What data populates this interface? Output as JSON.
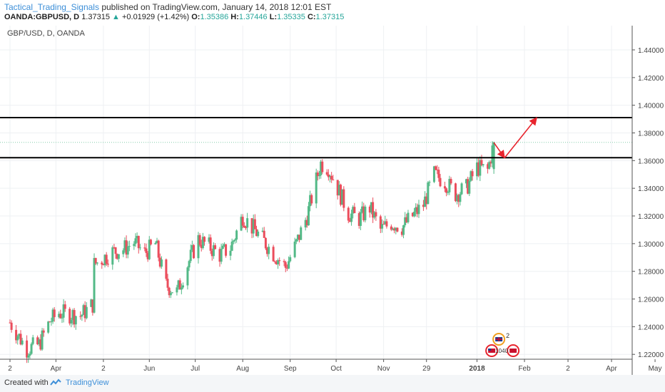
{
  "header": {
    "author": "Tactical_Trading_Signals",
    "published": "published on TradingView.com, January 14, 2018 12:01 EST",
    "symbol": "OANDA:GBPUSD, D",
    "last": "1.37315",
    "change_arrow": "▲",
    "change": "+0.01929 (+1.42%)",
    "o_label": "O:",
    "o": "1.35386",
    "h_label": "H:",
    "h": "1.37446",
    "l_label": "L:",
    "l": "1.35335",
    "c_label": "C:",
    "c": "1.37315"
  },
  "chart_title": "GBP/USD, D, OANDA",
  "colors": {
    "up": "#53b987",
    "down": "#eb4d5c",
    "level_line": "#000000",
    "arrow": "#e8242d",
    "current_badge": "#53b987",
    "grid": "#eef0f3"
  },
  "chart_data": {
    "type": "candlestick",
    "title": "GBP/USD, D, OANDA",
    "ylim": [
      1.2165,
      1.4575
    ],
    "y_ticks": [
      "1.44000",
      "1.42000",
      "1.40000",
      "1.38000",
      "1.36000",
      "1.34000",
      "1.32000",
      "1.30000",
      "1.28000",
      "1.26000",
      "1.24000",
      "1.22000"
    ],
    "x_ticks": [
      "2",
      "Apr",
      "2",
      "Jun",
      "Jul",
      "Aug",
      "Sep",
      "Oct",
      "Nov",
      "29",
      "2018",
      "Feb",
      "2",
      "Apr",
      "May"
    ],
    "key_levels": [
      {
        "label": "1.39105",
        "value": 1.39105
      },
      {
        "label": "1.36209",
        "value": 1.36209
      }
    ],
    "current_price": {
      "label": "1.37315",
      "value": 1.37315
    },
    "trend_keypoints": [
      [
        "Mar 2",
        1.243
      ],
      [
        "Mar 13",
        1.224
      ],
      [
        "Mar 21",
        1.227
      ],
      [
        "Mar 28",
        1.244
      ],
      [
        "Apr 3",
        1.25
      ],
      [
        "Apr 17",
        1.248
      ],
      [
        "Apr 25",
        1.256
      ],
      [
        "Apr 26",
        1.285
      ],
      [
        "May 8",
        1.294
      ],
      [
        "May 15",
        1.296
      ],
      [
        "May 22",
        1.301
      ],
      [
        "May 29",
        1.293
      ],
      [
        "Jun 5",
        1.3
      ],
      [
        "Jun 12",
        1.27
      ],
      [
        "Jun 19",
        1.265
      ],
      [
        "Jun 26",
        1.285
      ],
      [
        "Jul 3",
        1.303
      ],
      [
        "Jul 10",
        1.298
      ],
      [
        "Jul 17",
        1.292
      ],
      [
        "Jul 24",
        1.297
      ],
      [
        "Aug 1",
        1.32
      ],
      [
        "Aug 7",
        1.312
      ],
      [
        "Aug 14",
        1.303
      ],
      [
        "Aug 21",
        1.293
      ],
      [
        "Aug 29",
        1.283
      ],
      [
        "Sep 5",
        1.3
      ],
      [
        "Sep 12",
        1.32
      ],
      [
        "Sep 19",
        1.35
      ],
      [
        "Sep 21",
        1.358
      ],
      [
        "Sep 26",
        1.355
      ],
      [
        "Oct 2",
        1.34
      ],
      [
        "Oct 9",
        1.322
      ],
      [
        "Oct 16",
        1.318
      ],
      [
        "Oct 23",
        1.326
      ],
      [
        "Oct 30",
        1.31
      ],
      [
        "Nov 6",
        1.315
      ],
      [
        "Nov 13",
        1.312
      ],
      [
        "Nov 20",
        1.32
      ],
      [
        "Nov 27",
        1.328
      ],
      [
        "Dec 4",
        1.35
      ],
      [
        "Dec 11",
        1.345
      ],
      [
        "Dec 18",
        1.336
      ],
      [
        "Dec 25",
        1.34
      ],
      [
        "Jan 1",
        1.355
      ],
      [
        "Jan 8",
        1.353
      ],
      [
        "Jan 12",
        1.373
      ]
    ],
    "annotation_arrows": [
      {
        "from": [
          "Jan 12",
          1.373
        ],
        "to": [
          "Jan 19",
          1.362
        ]
      },
      {
        "from": [
          "Jan 19",
          1.362
        ],
        "to": [
          "Feb 9",
          1.391
        ]
      }
    ],
    "events": [
      {
        "flag": "uk",
        "label": "2"
      },
      {
        "flag": "us",
        "label": "1040"
      }
    ]
  },
  "footer": {
    "created_with": "Created with",
    "brand": "TradingView"
  }
}
